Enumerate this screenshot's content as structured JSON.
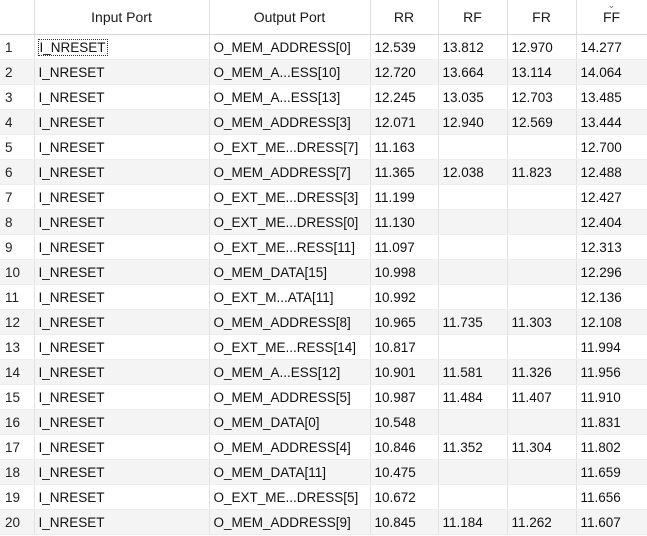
{
  "table": {
    "columns": [
      "Input Port",
      "Output Port",
      "RR",
      "RF",
      "FR",
      "FF"
    ],
    "sort_icon": "chevron-down-icon",
    "rows": [
      {
        "idx": "1",
        "input": "I_NRESET",
        "output": "O_MEM_ADDRESS[0]",
        "rr": "12.539",
        "rf": "13.812",
        "fr": "12.970",
        "ff": "14.277"
      },
      {
        "idx": "2",
        "input": "I_NRESET",
        "output": "O_MEM_A...ESS[10]",
        "rr": "12.720",
        "rf": "13.664",
        "fr": "13.114",
        "ff": "14.064"
      },
      {
        "idx": "3",
        "input": "I_NRESET",
        "output": "O_MEM_A...ESS[13]",
        "rr": "12.245",
        "rf": "13.035",
        "fr": "12.703",
        "ff": "13.485"
      },
      {
        "idx": "4",
        "input": "I_NRESET",
        "output": "O_MEM_ADDRESS[3]",
        "rr": "12.071",
        "rf": "12.940",
        "fr": "12.569",
        "ff": "13.444"
      },
      {
        "idx": "5",
        "input": "I_NRESET",
        "output": "O_EXT_ME...DRESS[7]",
        "rr": "11.163",
        "rf": "",
        "fr": "",
        "ff": "12.700"
      },
      {
        "idx": "6",
        "input": "I_NRESET",
        "output": "O_MEM_ADDRESS[7]",
        "rr": "11.365",
        "rf": "12.038",
        "fr": "11.823",
        "ff": "12.488"
      },
      {
        "idx": "7",
        "input": "I_NRESET",
        "output": "O_EXT_ME...DRESS[3]",
        "rr": "11.199",
        "rf": "",
        "fr": "",
        "ff": "12.427"
      },
      {
        "idx": "8",
        "input": "I_NRESET",
        "output": "O_EXT_ME...DRESS[0]",
        "rr": "11.130",
        "rf": "",
        "fr": "",
        "ff": "12.404"
      },
      {
        "idx": "9",
        "input": "I_NRESET",
        "output": "O_EXT_ME...RESS[11]",
        "rr": "11.097",
        "rf": "",
        "fr": "",
        "ff": "12.313"
      },
      {
        "idx": "10",
        "input": "I_NRESET",
        "output": "O_MEM_DATA[15]",
        "rr": "10.998",
        "rf": "",
        "fr": "",
        "ff": "12.296"
      },
      {
        "idx": "11",
        "input": "I_NRESET",
        "output": "O_EXT_M...ATA[11]",
        "rr": "10.992",
        "rf": "",
        "fr": "",
        "ff": "12.136"
      },
      {
        "idx": "12",
        "input": "I_NRESET",
        "output": "O_MEM_ADDRESS[8]",
        "rr": "10.965",
        "rf": "11.735",
        "fr": "11.303",
        "ff": "12.108"
      },
      {
        "idx": "13",
        "input": "I_NRESET",
        "output": "O_EXT_ME...RESS[14]",
        "rr": "10.817",
        "rf": "",
        "fr": "",
        "ff": "11.994"
      },
      {
        "idx": "14",
        "input": "I_NRESET",
        "output": "O_MEM_A...ESS[12]",
        "rr": "10.901",
        "rf": "11.581",
        "fr": "11.326",
        "ff": "11.956"
      },
      {
        "idx": "15",
        "input": "I_NRESET",
        "output": "O_MEM_ADDRESS[5]",
        "rr": "10.987",
        "rf": "11.484",
        "fr": "11.407",
        "ff": "11.910"
      },
      {
        "idx": "16",
        "input": "I_NRESET",
        "output": "O_MEM_DATA[0]",
        "rr": "10.548",
        "rf": "",
        "fr": "",
        "ff": "11.831"
      },
      {
        "idx": "17",
        "input": "I_NRESET",
        "output": "O_MEM_ADDRESS[4]",
        "rr": "10.846",
        "rf": "11.352",
        "fr": "11.304",
        "ff": "11.802"
      },
      {
        "idx": "18",
        "input": "I_NRESET",
        "output": "O_MEM_DATA[11]",
        "rr": "10.475",
        "rf": "",
        "fr": "",
        "ff": "11.659"
      },
      {
        "idx": "19",
        "input": "I_NRESET",
        "output": "O_EXT_ME...DRESS[5]",
        "rr": "10.672",
        "rf": "",
        "fr": "",
        "ff": "11.656"
      },
      {
        "idx": "20",
        "input": "I_NRESET",
        "output": "O_MEM_ADDRESS[9]",
        "rr": "10.845",
        "rf": "11.184",
        "fr": "11.262",
        "ff": "11.607"
      }
    ]
  }
}
